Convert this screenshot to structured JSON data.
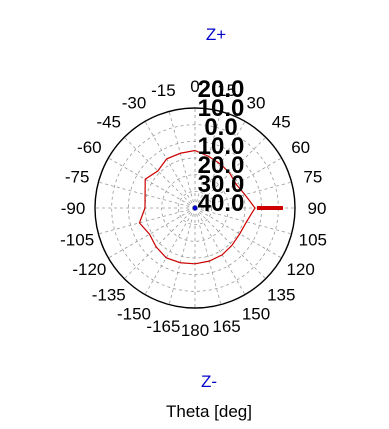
{
  "chart_data": {
    "type": "polar-line",
    "title": "",
    "top_label": "Z+",
    "bottom_label": "Z-",
    "xlabel": "Theta [deg]",
    "angle_ticks": [
      0,
      15,
      30,
      45,
      60,
      75,
      90,
      105,
      120,
      135,
      150,
      165,
      180,
      165,
      150,
      135,
      120,
      105,
      90,
      75,
      60,
      45,
      30,
      15
    ],
    "angle_tick_labels": [
      "0",
      "15",
      "30",
      "45",
      "60",
      "75",
      "90",
      "105",
      "120",
      "135",
      "150",
      "165",
      "180",
      "-165",
      "-150",
      "-135",
      "-120",
      "-105",
      "-90",
      "-75",
      "-60",
      "-45",
      "-30",
      "-15"
    ],
    "radial_ticks": [
      20.0,
      10.0,
      0.0,
      -10.0,
      -20.0,
      -30.0,
      -40.0
    ],
    "radial_tick_labels": [
      "20.0",
      "10.0",
      "0.0",
      "10.0",
      "20.0",
      "30.0",
      "40.0"
    ],
    "rlim": [
      -40,
      20
    ],
    "grid": true,
    "series": [
      {
        "color": "#cc0000",
        "theta_deg": [
          -180,
          -165,
          -150,
          -135,
          -120,
          -105,
          -90,
          -75,
          -60,
          -45,
          -30,
          -15,
          0,
          15,
          30,
          45,
          60,
          75,
          90,
          105,
          120,
          135,
          150,
          165,
          180
        ],
        "r_db": [
          -6.5,
          -6.0,
          -5.5,
          -7.0,
          -8.5,
          -5.5,
          -10.0,
          -9.0,
          -5.5,
          -8.5,
          -6.0,
          -6.0,
          -5.5,
          -8.0,
          -9.5,
          -10.5,
          -11.5,
          -9.0,
          -4.0,
          -8.0,
          -9.0,
          -8.5,
          -7.5,
          -7.0,
          -6.5
        ]
      },
      {
        "color": "#0000cc",
        "theta_deg": [
          0,
          90,
          180
        ],
        "r_db": [
          -40,
          -40,
          -40
        ]
      }
    ]
  }
}
